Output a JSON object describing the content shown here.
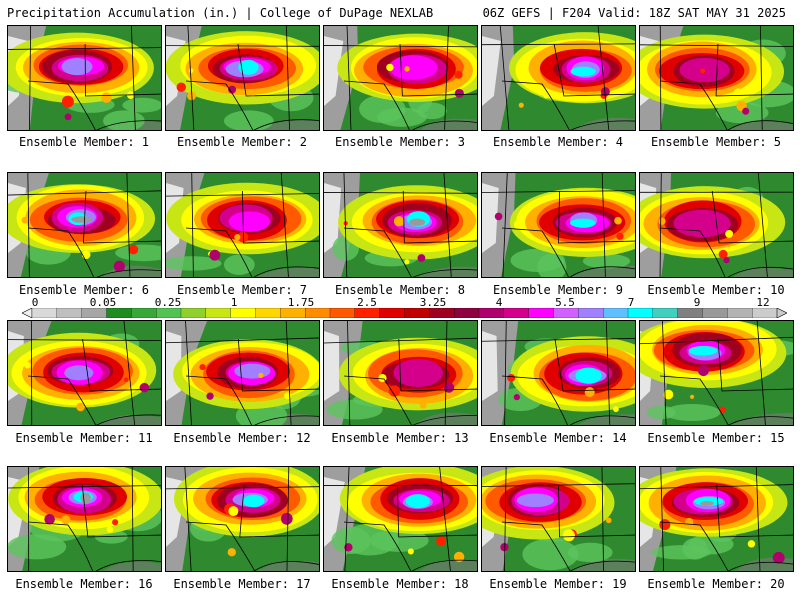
{
  "header": {
    "title": "Precipitation Accumulation (in.) | College of DuPage NEXLAB",
    "run_info": "06Z GEFS | F204 Valid: 18Z SAT MAY 31 2025"
  },
  "member_label_prefix": "Ensemble Member: ",
  "members": [
    {
      "number": "1",
      "peak": 6.5
    },
    {
      "number": "2",
      "peak": 7.0
    },
    {
      "number": "3",
      "peak": 5.8
    },
    {
      "number": "4",
      "peak": 6.8
    },
    {
      "number": "5",
      "peak": 5.2
    },
    {
      "number": "6",
      "peak": 8.5
    },
    {
      "number": "7",
      "peak": 6.0
    },
    {
      "number": "8",
      "peak": 8.0
    },
    {
      "number": "9",
      "peak": 7.2
    },
    {
      "number": "10",
      "peak": 5.0
    },
    {
      "number": "11",
      "peak": 6.5
    },
    {
      "number": "12",
      "peak": 6.2
    },
    {
      "number": "13",
      "peak": 5.0
    },
    {
      "number": "14",
      "peak": 7.0
    },
    {
      "number": "15",
      "peak": 6.8
    },
    {
      "number": "16",
      "peak": 7.5
    },
    {
      "number": "17",
      "peak": 7.0
    },
    {
      "number": "18",
      "peak": 6.8
    },
    {
      "number": "19",
      "peak": 6.5
    },
    {
      "number": "20",
      "peak": 7.5
    }
  ],
  "colorbar": {
    "labels": [
      "0",
      "0.05",
      "0.25",
      "1",
      "1.75",
      "2.5",
      "3.25",
      "4",
      "5.5",
      "7",
      "9",
      "12"
    ],
    "colors": [
      "#d9d9d9",
      "#bfbfbf",
      "#a6a6a6",
      "#1e8c1e",
      "#38a838",
      "#52c252",
      "#8fd12a",
      "#c8e614",
      "#ffff00",
      "#ffd700",
      "#ffb000",
      "#ff8c00",
      "#ff5a00",
      "#ff2000",
      "#e00000",
      "#c00000",
      "#a00020",
      "#900040",
      "#b0006e",
      "#d4008c",
      "#ff00ff",
      "#d060ff",
      "#a080ff",
      "#60c0ff",
      "#00ffff",
      "#40d0c0",
      "#808080",
      "#999999",
      "#b3b3b3",
      "#cccccc"
    ]
  },
  "colors": {
    "background": "#ffffff",
    "ground": "#2e7d32",
    "borders": "#000000"
  }
}
